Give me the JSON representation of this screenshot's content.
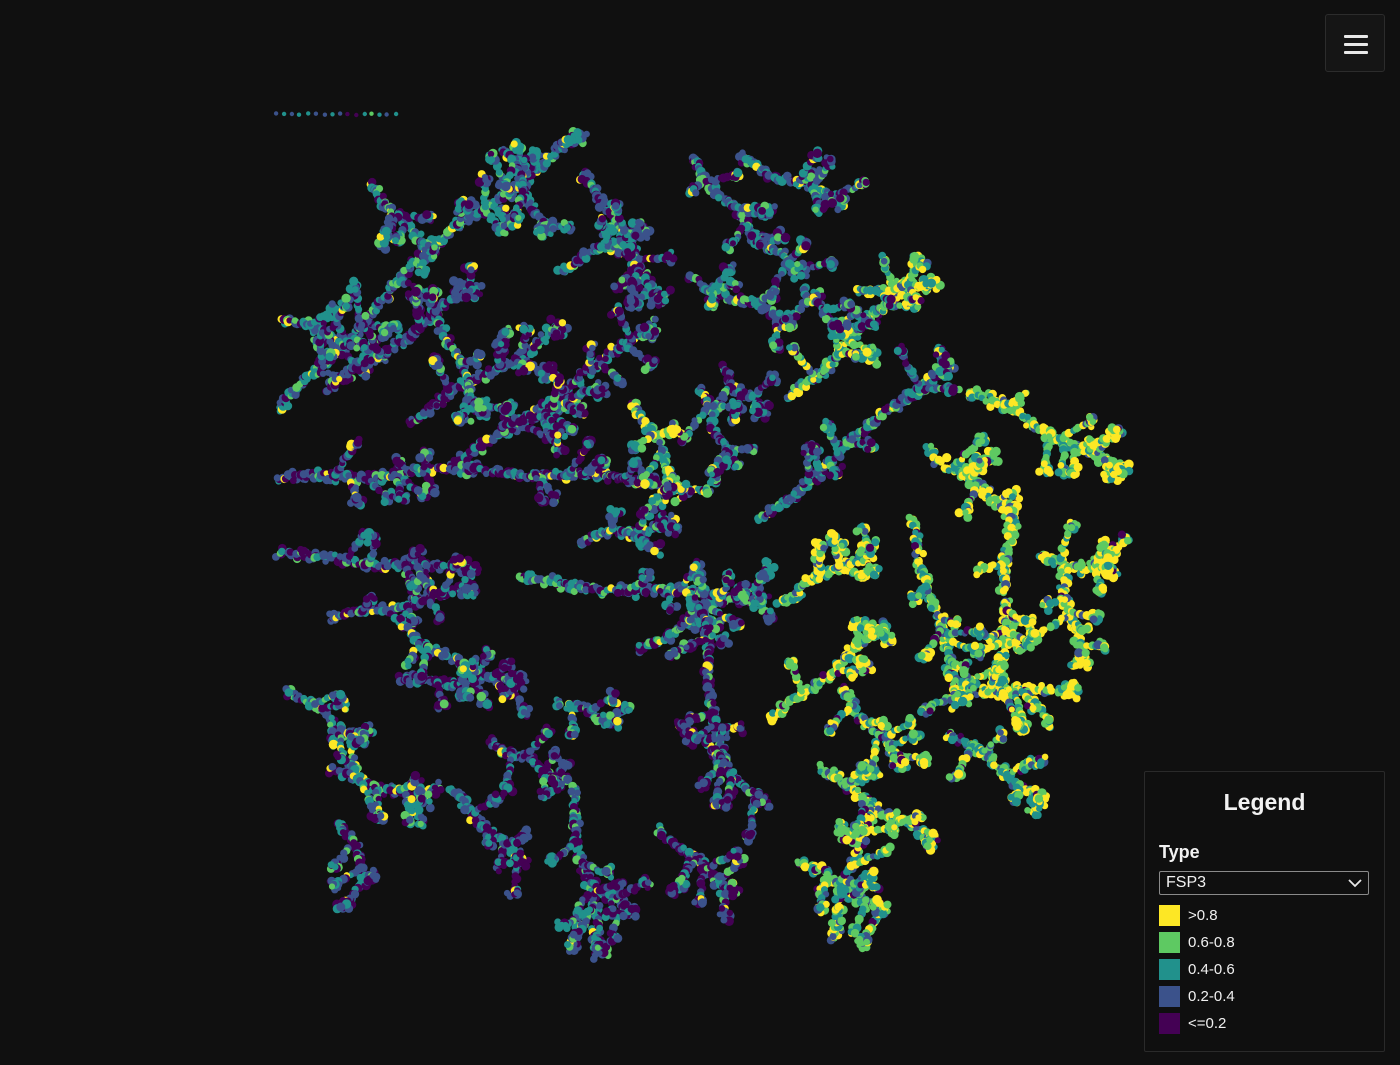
{
  "menu": {
    "icon": "hamburger-menu-icon"
  },
  "legend": {
    "title": "Legend",
    "type_label": "Type",
    "type_selected": "FSP3",
    "chevron_icon": "chevron-down-icon",
    "items": [
      {
        "label": ">0.8",
        "color": "#fde725"
      },
      {
        "label": "0.6-0.8",
        "color": "#5ec962"
      },
      {
        "label": "0.4-0.6",
        "color": "#21918c"
      },
      {
        "label": "0.2-0.4",
        "color": "#3b528b"
      },
      {
        "label": "<=0.2",
        "color": "#440154"
      }
    ]
  },
  "scatter": {
    "background": "#101010",
    "palette": [
      "#fde725",
      "#5ec962",
      "#21918c",
      "#3b528b",
      "#440154"
    ]
  }
}
